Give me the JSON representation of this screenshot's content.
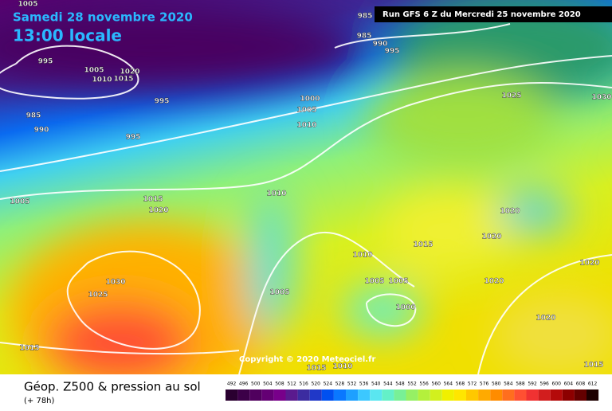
{
  "header": {
    "date": "Samedi 28 novembre 2020",
    "time": "13:00 locale",
    "run": "Run GFS 6 Z du Mercredi 25 novembre 2020"
  },
  "footer": {
    "title": "Géop. Z500 & pression au sol",
    "lead": "(+ 78h)",
    "copyright": "Copyright © 2020 Meteociel.fr"
  },
  "isobar_labels": [
    1005,
    985,
    985,
    990,
    995,
    995,
    1005,
    1020,
    1010,
    1015,
    995,
    985,
    990,
    995,
    1000,
    1005,
    1010,
    1025,
    1030,
    1010,
    1015,
    1020,
    1005,
    1020,
    1020,
    1015,
    1010,
    1005,
    1005,
    1020,
    1020,
    1030,
    1025,
    1005,
    1000,
    1020,
    1015,
    1015,
    1010,
    1015
  ],
  "legend": {
    "levels": [
      492,
      496,
      500,
      504,
      508,
      512,
      516,
      520,
      524,
      528,
      532,
      536,
      540,
      544,
      548,
      552,
      556,
      560,
      564,
      568,
      572,
      576,
      580,
      584,
      588,
      592,
      596,
      600,
      604,
      608,
      612
    ],
    "colors": [
      "#2a0030",
      "#3c0048",
      "#50005e",
      "#640074",
      "#78008a",
      "#5a1a8e",
      "#3c2ca0",
      "#2038c8",
      "#0050f0",
      "#0a78ff",
      "#1ea0ff",
      "#3cc8ff",
      "#5ae6f0",
      "#64f0c8",
      "#78f096",
      "#96f064",
      "#b4f03c",
      "#d2f01e",
      "#f0f000",
      "#ffe600",
      "#ffc800",
      "#ffaa00",
      "#ff8c00",
      "#ff6e1e",
      "#ff5032",
      "#f03232",
      "#d21e1e",
      "#b40a0a",
      "#8c0000",
      "#640000",
      "#1e0000"
    ]
  }
}
